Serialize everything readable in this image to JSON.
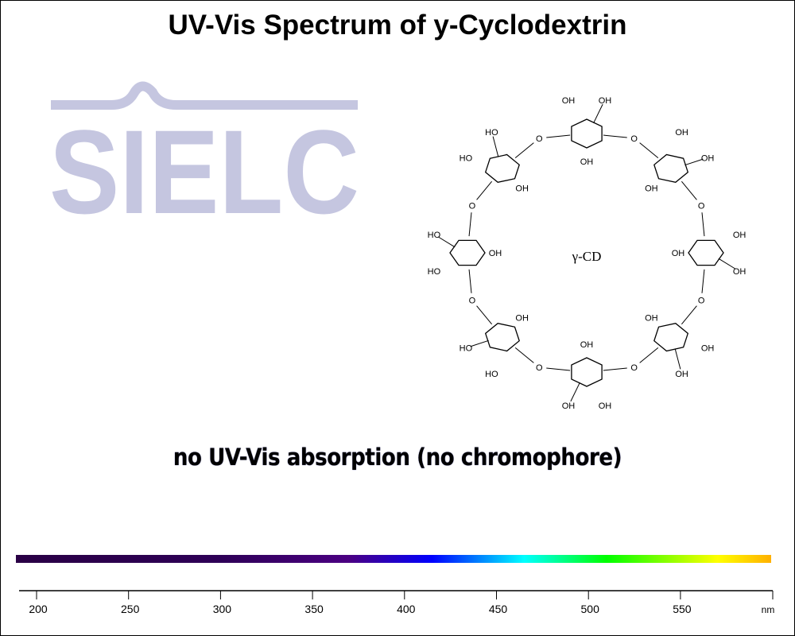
{
  "title": "UV-Vis Spectrum of y-Cyclodextrin",
  "logo": {
    "text": "SIELC",
    "color": "#c5c6e0"
  },
  "molecule": {
    "center_label": "γ-CD",
    "hydroxyl": "OH",
    "hydroxyl_rev": "HO",
    "oxygen": "O",
    "units": 8
  },
  "note": "no UV-Vis absorption (no chromophore)",
  "chart_data": {
    "type": "line",
    "title": "UV-Vis Spectrum of y-Cyclodextrin",
    "xlabel": "nm",
    "ylabel": "",
    "xlim": [
      190,
      600
    ],
    "x_ticks": [
      200,
      250,
      300,
      350,
      400,
      450,
      500,
      550
    ],
    "series": [],
    "annotation": "no UV-Vis absorption (no chromophore)",
    "spectrum_bar": [
      {
        "nm": 190,
        "color": "#2a0045"
      },
      {
        "nm": 300,
        "color": "#2e0057"
      },
      {
        "nm": 370,
        "color": "#4b0082"
      },
      {
        "nm": 415,
        "color": "#0000ff"
      },
      {
        "nm": 465,
        "color": "#00ffff"
      },
      {
        "nm": 510,
        "color": "#00ff00"
      },
      {
        "nm": 570,
        "color": "#ffff00"
      },
      {
        "nm": 600,
        "color": "#ffb000"
      }
    ]
  }
}
